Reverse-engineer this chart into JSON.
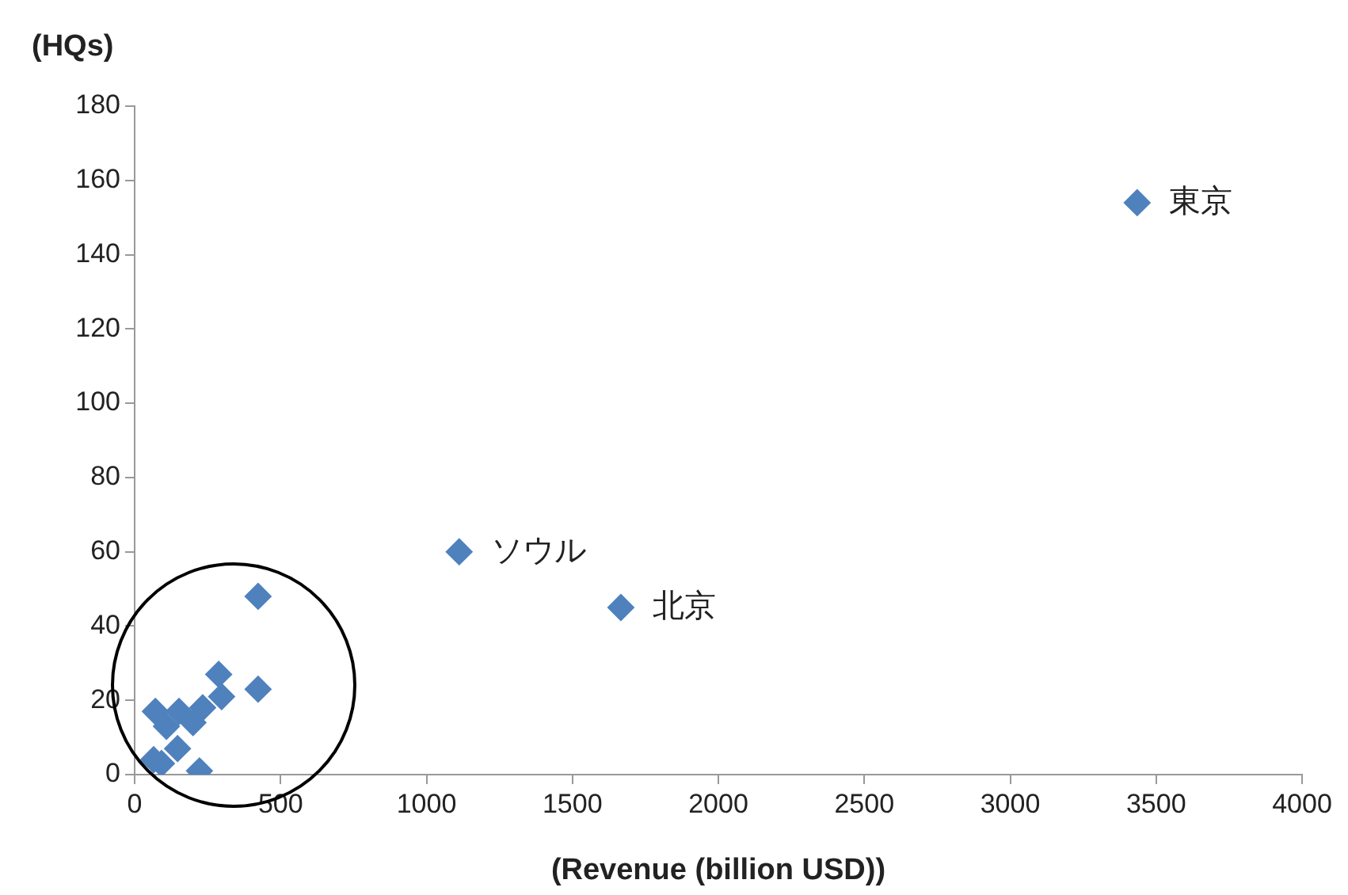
{
  "chart_data": {
    "type": "scatter",
    "xlabel": "(Revenue (billion USD))",
    "ylabel": "(HQs)",
    "x": [
      3435,
      1112,
      1666,
      423,
      423,
      288,
      298,
      222,
      65,
      92,
      71,
      125,
      152,
      200,
      233,
      109,
      147
    ],
    "series": [
      {
        "color": "#4f81bd",
        "values": [
          154,
          60,
          45,
          48,
          23,
          27,
          21,
          1,
          4,
          3,
          17,
          null,
          17,
          14,
          18,
          13,
          7
        ]
      }
    ],
    "xlim": [
      0,
      4000
    ],
    "xticks": [
      0,
      500,
      1000,
      1500,
      2000,
      2500,
      3000,
      3500,
      4000
    ],
    "ylim": [
      0,
      180
    ],
    "yticks": [
      0,
      20,
      40,
      60,
      80,
      100,
      120,
      140,
      160,
      180
    ],
    "grid": false,
    "legend": false,
    "marker": "diamond",
    "annotations": [
      {
        "text": "東京",
        "x": 3435,
        "y": 154
      },
      {
        "text": "ソウル",
        "x": 1112,
        "y": 60
      },
      {
        "text": "北京",
        "x": 1666,
        "y": 45
      }
    ]
  }
}
